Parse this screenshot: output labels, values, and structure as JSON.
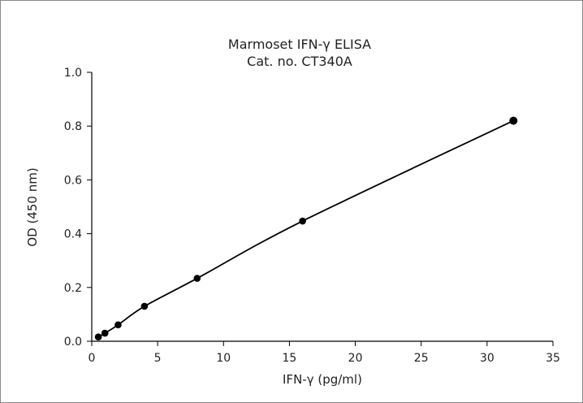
{
  "chart_data": {
    "type": "scatter",
    "title": "Marmoset IFN-γ ELISA",
    "subtitle": "Cat. no. CT340A",
    "xlabel": "IFN-γ (pg/ml)",
    "ylabel": "OD (450 nm)",
    "xlim": [
      0,
      35
    ],
    "ylim": [
      0.0,
      1.0
    ],
    "x_ticks": [
      "0",
      "5",
      "10",
      "15",
      "20",
      "25",
      "30",
      "35"
    ],
    "y_ticks": [
      "0.0",
      "0.2",
      "0.4",
      "0.6",
      "0.8",
      "1.0"
    ],
    "grid": false,
    "legend": "none",
    "series": [
      {
        "x": [
          0.5,
          1,
          2,
          4,
          8,
          16,
          32
        ],
        "y": [
          0.016,
          0.03,
          0.061,
          0.13,
          0.234,
          0.447,
          0.82
        ],
        "fit": "smooth curve"
      }
    ],
    "colors": {
      "points": "#000000",
      "curve": "#000000",
      "frame": "#8a8a8a"
    }
  }
}
